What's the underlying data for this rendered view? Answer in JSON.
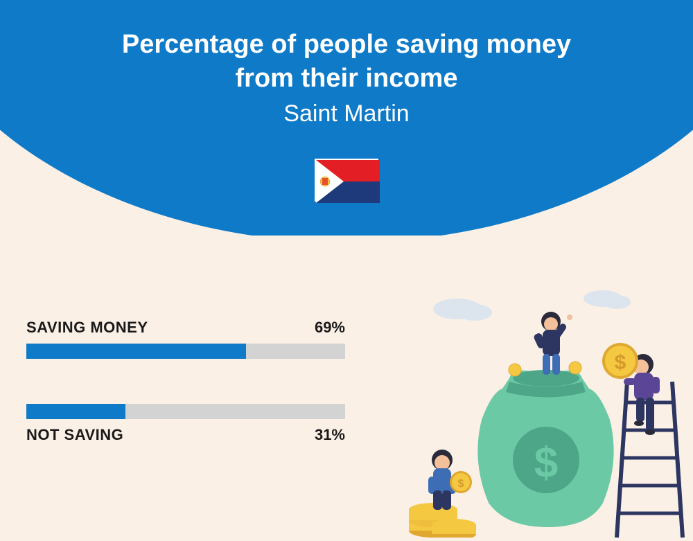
{
  "header": {
    "title_line1": "Percentage of people saving money",
    "title_line2": "from their income",
    "subtitle": "Saint Martin",
    "curve_color": "#0f7ac7",
    "text_color": "#ffffff"
  },
  "flag": {
    "colors": {
      "red": "#e31e24",
      "blue": "#1e3a7b",
      "white": "#ffffff",
      "emblem_fill": "#f5c842"
    }
  },
  "bars": [
    {
      "label": "SAVING MONEY",
      "value": 69,
      "value_display": "69%",
      "label_position": "above"
    },
    {
      "label": "NOT SAVING",
      "value": 31,
      "value_display": "31%",
      "label_position": "below"
    }
  ],
  "bar_styling": {
    "track_color": "#d3d3d3",
    "fill_color": "#0f7ac7",
    "track_height": 22,
    "label_fontsize": 22,
    "label_color": "#1a1a1a",
    "label_weight": 700,
    "max_value": 100
  },
  "background": {
    "color": "#fbf0e6"
  },
  "illustration": {
    "colors": {
      "bag": "#6bc9a5",
      "bag_dark": "#4da687",
      "coin": "#f5c842",
      "coin_edge": "#e0a830",
      "dollar": "#d49a2a",
      "ladder": "#2d3561",
      "skin": "#f4c09a",
      "hair": "#2a2a3a",
      "shirt1": "#5b4596",
      "shirt2": "#3d6db5",
      "pants": "#2d3561",
      "cloud": "#dce5ed"
    }
  }
}
